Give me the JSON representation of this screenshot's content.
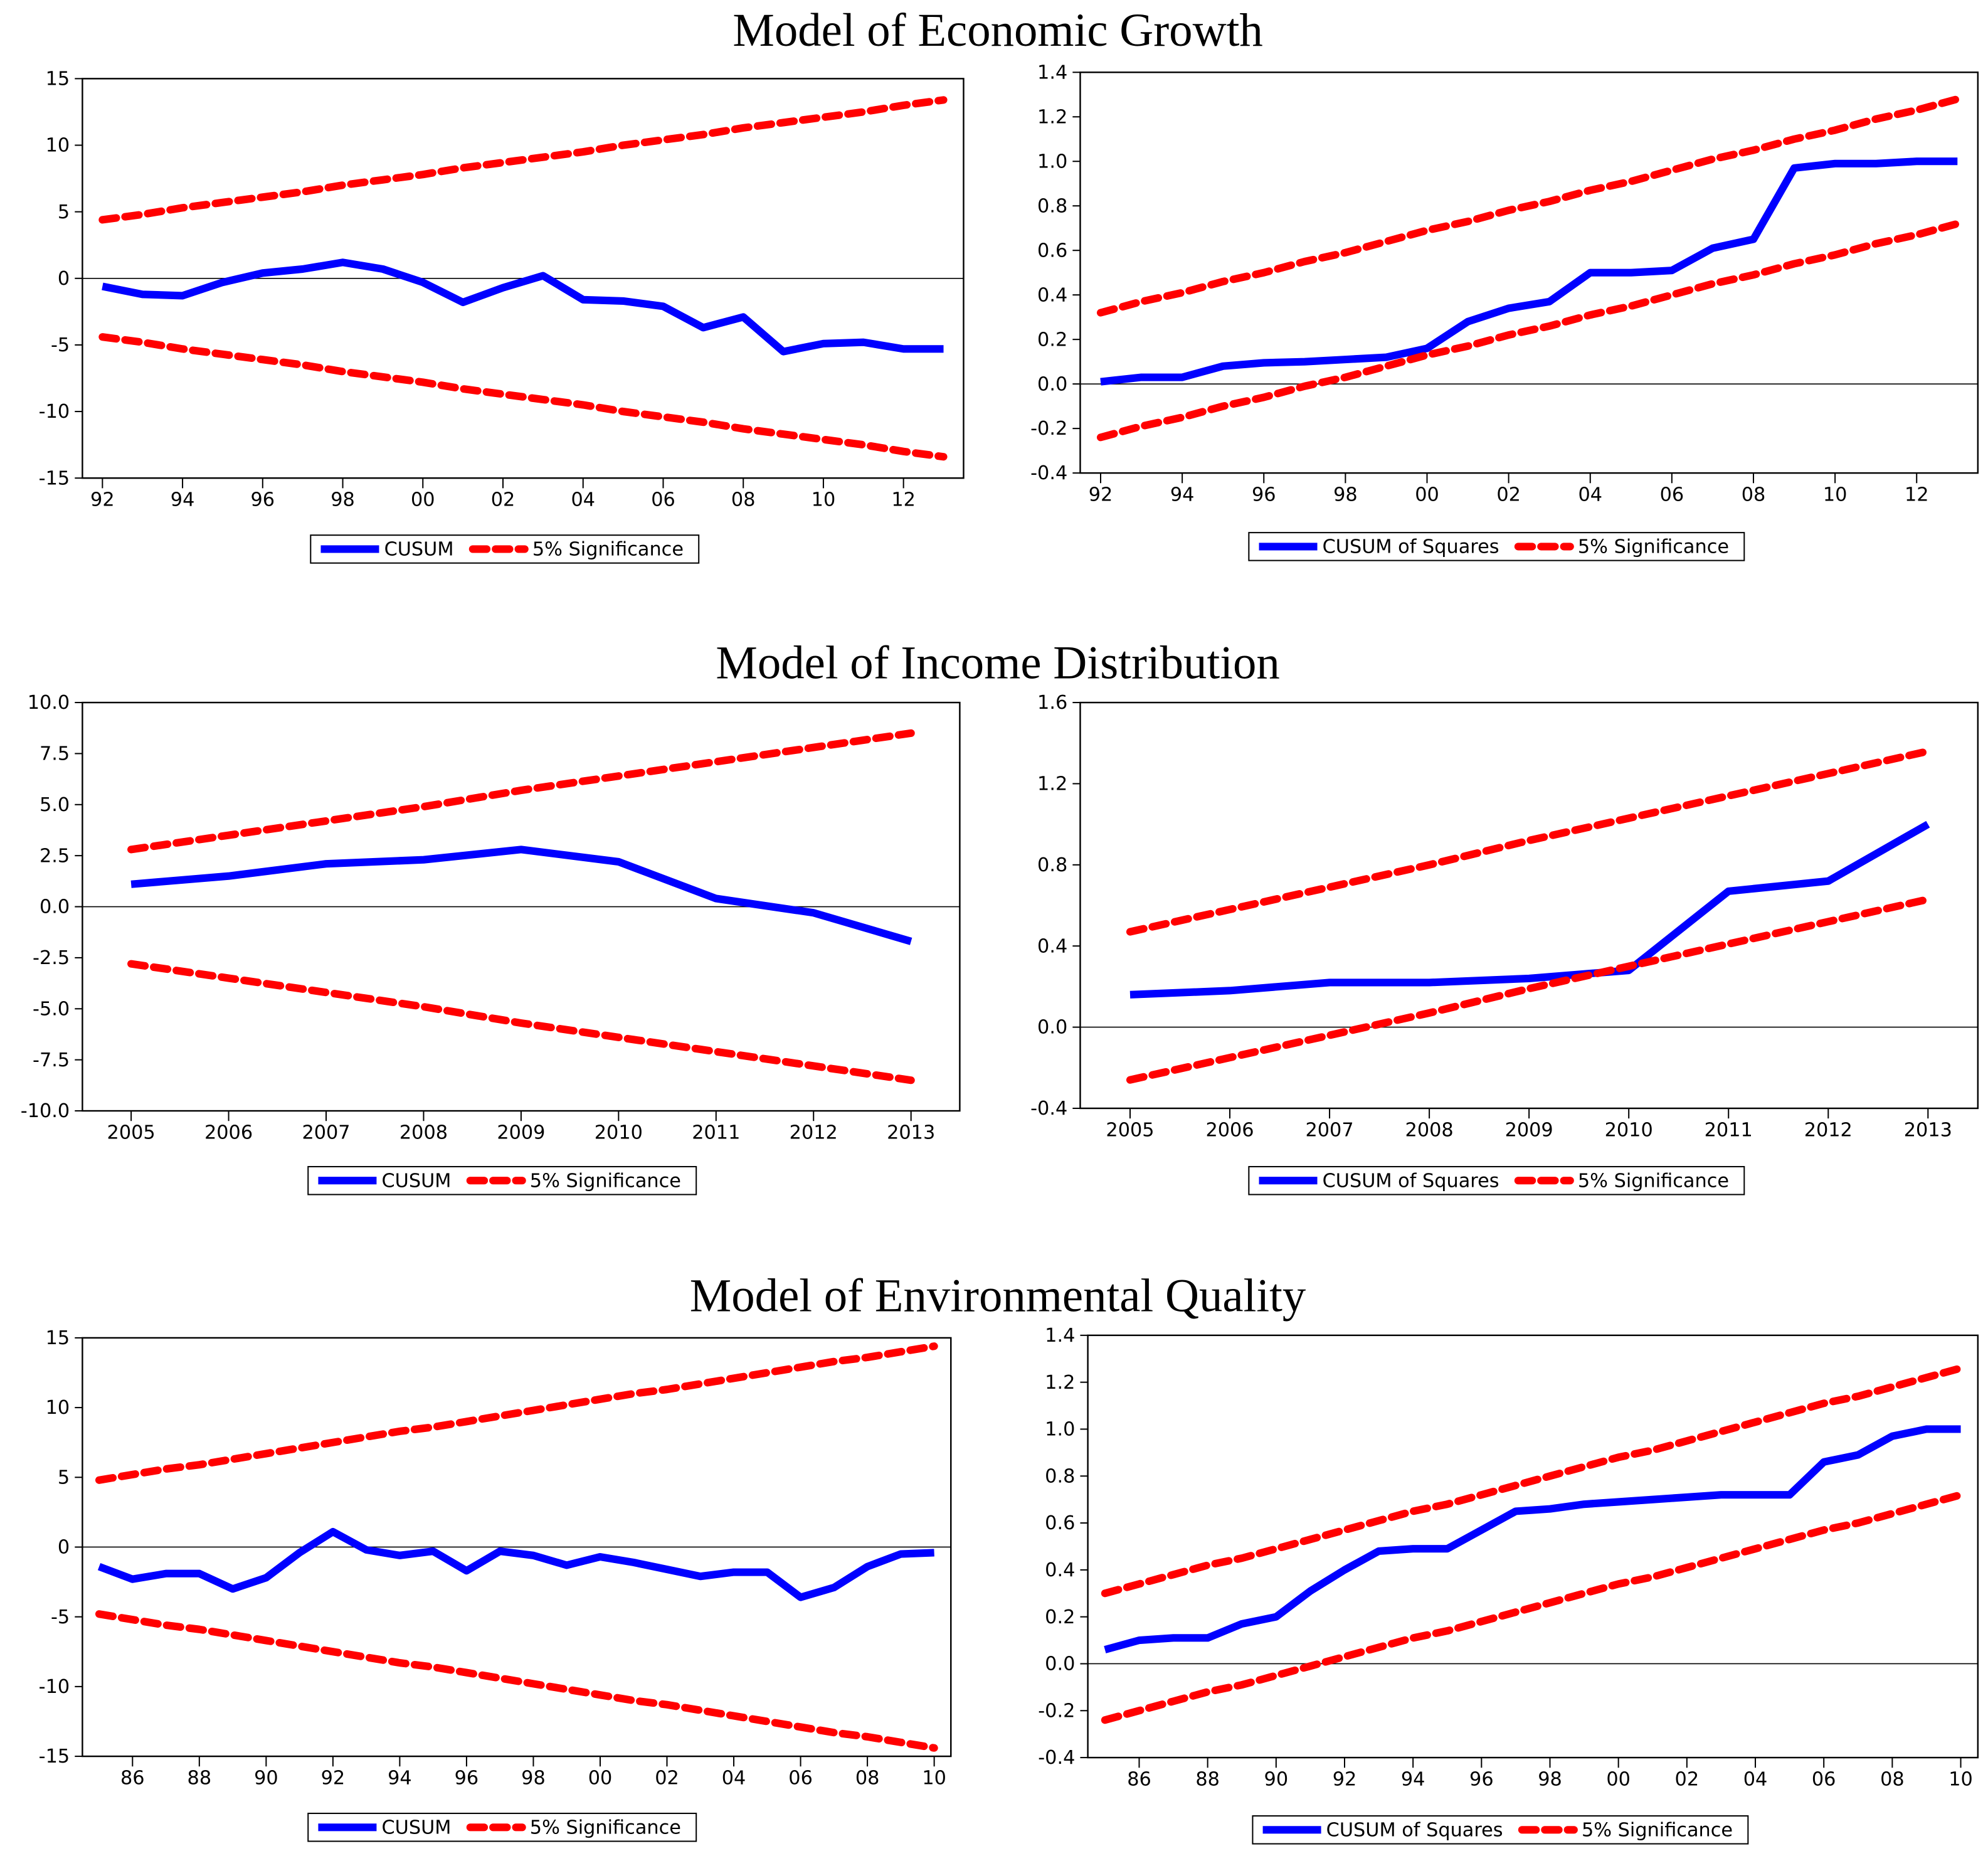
{
  "section_titles": [
    "Model of Economic Growth",
    "Model of Income Distribution",
    "Model of Environmental Quality"
  ],
  "chart_data": [
    {
      "type": "line",
      "x": [
        1992,
        1993,
        1994,
        1995,
        1996,
        1997,
        1998,
        1999,
        2000,
        2001,
        2002,
        2003,
        2004,
        2005,
        2006,
        2007,
        2008,
        2009,
        2010,
        2011,
        2012,
        2013
      ],
      "xlim": [
        1991.5,
        2013.5
      ],
      "xticks": [
        {
          "value": 1992,
          "label": "92"
        },
        {
          "value": 1994,
          "label": "94"
        },
        {
          "value": 1996,
          "label": "96"
        },
        {
          "value": 1998,
          "label": "98"
        },
        {
          "value": 2000,
          "label": "00"
        },
        {
          "value": 2002,
          "label": "02"
        },
        {
          "value": 2004,
          "label": "04"
        },
        {
          "value": 2006,
          "label": "06"
        },
        {
          "value": 2008,
          "label": "08"
        },
        {
          "value": 2010,
          "label": "10"
        },
        {
          "value": 2012,
          "label": "12"
        }
      ],
      "ylim": [
        -15,
        15
      ],
      "yticks": [
        15,
        10,
        5,
        0,
        -5,
        -10,
        -15
      ],
      "series": [
        {
          "name": "CUSUM",
          "color": "#0000ff",
          "values": [
            -0.6,
            -1.2,
            -1.3,
            -0.3,
            0.4,
            0.7,
            1.2,
            0.7,
            -0.3,
            -1.8,
            -0.7,
            0.2,
            -1.6,
            -1.7,
            -2.1,
            -3.7,
            -2.9,
            -5.5,
            -4.9,
            -4.8,
            -5.3,
            -5.3
          ]
        },
        {
          "name": "5% Significance",
          "color": "#ff0000",
          "values": [
            4.4,
            4.8,
            5.3,
            5.7,
            6.1,
            6.5,
            7.0,
            7.4,
            7.8,
            8.3,
            8.7,
            9.1,
            9.5,
            10.0,
            10.4,
            10.8,
            11.3,
            11.7,
            12.1,
            12.5,
            13.0,
            13.4
          ],
          "lower": [
            -4.4,
            -4.8,
            -5.3,
            -5.7,
            -6.1,
            -6.5,
            -7.0,
            -7.4,
            -7.8,
            -8.3,
            -8.7,
            -9.1,
            -9.5,
            -10.0,
            -10.4,
            -10.8,
            -11.3,
            -11.7,
            -12.1,
            -12.5,
            -13.0,
            -13.4
          ]
        }
      ]
    },
    {
      "type": "line",
      "x": [
        1992,
        1993,
        1994,
        1995,
        1996,
        1997,
        1998,
        1999,
        2000,
        2001,
        2002,
        2003,
        2004,
        2005,
        2006,
        2007,
        2008,
        2009,
        2010,
        2011,
        2012,
        2013
      ],
      "xlim": [
        1991.5,
        2013.5
      ],
      "xticks": [
        {
          "value": 1992,
          "label": "92"
        },
        {
          "value": 1994,
          "label": "94"
        },
        {
          "value": 1996,
          "label": "96"
        },
        {
          "value": 1998,
          "label": "98"
        },
        {
          "value": 2000,
          "label": "00"
        },
        {
          "value": 2002,
          "label": "02"
        },
        {
          "value": 2004,
          "label": "04"
        },
        {
          "value": 2006,
          "label": "06"
        },
        {
          "value": 2008,
          "label": "08"
        },
        {
          "value": 2010,
          "label": "10"
        },
        {
          "value": 2012,
          "label": "12"
        }
      ],
      "ylim": [
        -0.4,
        1.4
      ],
      "yticks": [
        1.4,
        1.2,
        {
          "value": 1,
          "label": "1.0"
        },
        0.8,
        0.6,
        0.4,
        0.2,
        {
          "value": 0,
          "label": "0.0"
        },
        -0.2,
        -0.4
      ],
      "series": [
        {
          "name": "CUSUM of Squares",
          "color": "#0000ff",
          "values": [
            0.01,
            0.03,
            0.03,
            0.08,
            0.095,
            0.1,
            0.11,
            0.12,
            0.16,
            0.28,
            0.34,
            0.37,
            0.5,
            0.5,
            0.51,
            0.61,
            0.65,
            0.97,
            0.99,
            0.99,
            1.0,
            1.0
          ]
        },
        {
          "name": "5% Significance",
          "color": "#ff0000",
          "values": [
            0.32,
            0.37,
            0.41,
            0.46,
            0.5,
            0.55,
            0.59,
            0.64,
            0.69,
            0.73,
            0.78,
            0.82,
            0.87,
            0.91,
            0.96,
            1.01,
            1.05,
            1.1,
            1.14,
            1.19,
            1.23,
            1.28
          ],
          "lower": [
            -0.24,
            -0.19,
            -0.15,
            -0.1,
            -0.06,
            -0.01,
            0.03,
            0.08,
            0.13,
            0.17,
            0.22,
            0.26,
            0.31,
            0.35,
            0.4,
            0.45,
            0.49,
            0.54,
            0.58,
            0.63,
            0.67,
            0.72
          ]
        }
      ]
    },
    {
      "type": "line",
      "x": [
        2005,
        2006,
        2007,
        2008,
        2009,
        2010,
        2011,
        2012,
        2013
      ],
      "xlim": [
        2004.5,
        2013.5
      ],
      "xticks": [
        2005,
        2006,
        2007,
        2008,
        2009,
        2010,
        2011,
        2012,
        2013
      ],
      "ylim": [
        -10,
        10
      ],
      "yticks": [
        {
          "value": 10,
          "label": "10.0"
        },
        7.5,
        {
          "value": 5,
          "label": "5.0"
        },
        2.5,
        {
          "value": 0,
          "label": "0.0"
        },
        -2.5,
        {
          "value": -5,
          "label": "-5.0"
        },
        -7.5,
        {
          "value": -10,
          "label": "-10.0"
        }
      ],
      "series": [
        {
          "name": "CUSUM",
          "color": "#0000ff",
          "values": [
            1.1,
            1.5,
            2.1,
            2.3,
            2.8,
            2.2,
            0.4,
            -0.3,
            -1.7
          ]
        },
        {
          "name": "5% Significance",
          "color": "#ff0000",
          "values": [
            2.8,
            3.5,
            4.2,
            4.9,
            5.7,
            6.4,
            7.1,
            7.8,
            8.5
          ],
          "lower": [
            -2.8,
            -3.5,
            -4.2,
            -4.9,
            -5.7,
            -6.4,
            -7.1,
            -7.8,
            -8.5
          ]
        }
      ]
    },
    {
      "type": "line",
      "x": [
        2005,
        2006,
        2007,
        2008,
        2009,
        2010,
        2011,
        2012,
        2013
      ],
      "xlim": [
        2004.5,
        2013.5
      ],
      "xticks": [
        2005,
        2006,
        2007,
        2008,
        2009,
        2010,
        2011,
        2012,
        2013
      ],
      "ylim": [
        -0.4,
        1.6
      ],
      "yticks": [
        1.6,
        1.2,
        0.8,
        0.4,
        {
          "value": 0,
          "label": "0.0"
        },
        -0.4
      ],
      "series": [
        {
          "name": "CUSUM of Squares",
          "color": "#0000ff",
          "values": [
            0.16,
            0.18,
            0.22,
            0.22,
            0.24,
            0.28,
            0.67,
            0.72,
            1.0
          ]
        },
        {
          "name": "5% Significance",
          "color": "#ff0000",
          "values": [
            0.47,
            0.58,
            0.69,
            0.8,
            0.92,
            1.03,
            1.14,
            1.25,
            1.36
          ],
          "lower": [
            -0.26,
            -0.15,
            -0.04,
            0.07,
            0.19,
            0.3,
            0.41,
            0.52,
            0.63
          ]
        }
      ]
    },
    {
      "type": "line",
      "x": [
        1985,
        1986,
        1987,
        1988,
        1989,
        1990,
        1991,
        1992,
        1993,
        1994,
        1995,
        1996,
        1997,
        1998,
        1999,
        2000,
        2001,
        2002,
        2003,
        2004,
        2005,
        2006,
        2007,
        2008,
        2009,
        2010
      ],
      "xlim": [
        1984.5,
        2010.5
      ],
      "xticks": [
        {
          "value": 1986,
          "label": "86"
        },
        {
          "value": 1988,
          "label": "88"
        },
        {
          "value": 1990,
          "label": "90"
        },
        {
          "value": 1992,
          "label": "92"
        },
        {
          "value": 1994,
          "label": "94"
        },
        {
          "value": 1996,
          "label": "96"
        },
        {
          "value": 1998,
          "label": "98"
        },
        {
          "value": 2000,
          "label": "00"
        },
        {
          "value": 2002,
          "label": "02"
        },
        {
          "value": 2004,
          "label": "04"
        },
        {
          "value": 2006,
          "label": "06"
        },
        {
          "value": 2008,
          "label": "08"
        },
        {
          "value": 2010,
          "label": "10"
        }
      ],
      "ylim": [
        -15,
        15
      ],
      "yticks": [
        15,
        10,
        5,
        0,
        -5,
        -10,
        -15
      ],
      "series": [
        {
          "name": "CUSUM",
          "color": "#0000ff",
          "values": [
            -1.4,
            -2.3,
            -1.9,
            -1.9,
            -3.0,
            -2.2,
            -0.4,
            1.1,
            -0.2,
            -0.6,
            -0.3,
            -1.7,
            -0.3,
            -0.6,
            -1.3,
            -0.7,
            -1.1,
            -1.6,
            -2.1,
            -1.8,
            -1.8,
            -3.6,
            -2.9,
            -1.4,
            -0.5,
            -0.4
          ]
        },
        {
          "name": "5% Significance",
          "color": "#ff0000",
          "values": [
            4.8,
            5.2,
            5.6,
            5.9,
            6.3,
            6.7,
            7.1,
            7.5,
            7.9,
            8.3,
            8.6,
            9.0,
            9.4,
            9.8,
            10.2,
            10.6,
            11.0,
            11.3,
            11.7,
            12.1,
            12.5,
            12.9,
            13.3,
            13.6,
            14.0,
            14.4
          ],
          "lower": [
            -4.8,
            -5.2,
            -5.6,
            -5.9,
            -6.3,
            -6.7,
            -7.1,
            -7.5,
            -7.9,
            -8.3,
            -8.6,
            -9.0,
            -9.4,
            -9.8,
            -10.2,
            -10.6,
            -11.0,
            -11.3,
            -11.7,
            -12.1,
            -12.5,
            -12.9,
            -13.3,
            -13.6,
            -14.0,
            -14.4
          ]
        }
      ]
    },
    {
      "type": "line",
      "x": [
        1985,
        1986,
        1987,
        1988,
        1989,
        1990,
        1991,
        1992,
        1993,
        1994,
        1995,
        1996,
        1997,
        1998,
        1999,
        2000,
        2001,
        2002,
        2003,
        2004,
        2005,
        2006,
        2007,
        2008,
        2009,
        2010
      ],
      "xlim": [
        1984.5,
        2010.5
      ],
      "xticks": [
        {
          "value": 1986,
          "label": "86"
        },
        {
          "value": 1988,
          "label": "88"
        },
        {
          "value": 1990,
          "label": "90"
        },
        {
          "value": 1992,
          "label": "92"
        },
        {
          "value": 1994,
          "label": "94"
        },
        {
          "value": 1996,
          "label": "96"
        },
        {
          "value": 1998,
          "label": "98"
        },
        {
          "value": 2000,
          "label": "00"
        },
        {
          "value": 2002,
          "label": "02"
        },
        {
          "value": 2004,
          "label": "04"
        },
        {
          "value": 2006,
          "label": "06"
        },
        {
          "value": 2008,
          "label": "08"
        },
        {
          "value": 2010,
          "label": "10"
        }
      ],
      "ylim": [
        -0.4,
        1.4
      ],
      "yticks": [
        1.4,
        1.2,
        {
          "value": 1,
          "label": "1.0"
        },
        0.8,
        0.6,
        0.4,
        0.2,
        {
          "value": 0,
          "label": "0.0"
        },
        -0.2,
        -0.4
      ],
      "series": [
        {
          "name": "CUSUM of Squares",
          "color": "#0000ff",
          "values": [
            0.06,
            0.1,
            0.11,
            0.11,
            0.17,
            0.2,
            0.31,
            0.4,
            0.48,
            0.49,
            0.49,
            0.57,
            0.65,
            0.66,
            0.68,
            0.69,
            0.7,
            0.71,
            0.72,
            0.72,
            0.72,
            0.86,
            0.89,
            0.97,
            1.0,
            1.0
          ]
        },
        {
          "name": "5% Significance",
          "color": "#ff0000",
          "values": [
            0.3,
            0.34,
            0.38,
            0.42,
            0.45,
            0.49,
            0.53,
            0.57,
            0.61,
            0.65,
            0.68,
            0.72,
            0.76,
            0.8,
            0.84,
            0.88,
            0.91,
            0.95,
            0.99,
            1.03,
            1.07,
            1.11,
            1.14,
            1.18,
            1.22,
            1.26
          ],
          "lower": [
            -0.24,
            -0.2,
            -0.16,
            -0.12,
            -0.09,
            -0.05,
            -0.01,
            0.03,
            0.07,
            0.11,
            0.14,
            0.18,
            0.22,
            0.26,
            0.3,
            0.34,
            0.37,
            0.41,
            0.45,
            0.49,
            0.53,
            0.57,
            0.6,
            0.64,
            0.68,
            0.72
          ]
        }
      ]
    }
  ]
}
